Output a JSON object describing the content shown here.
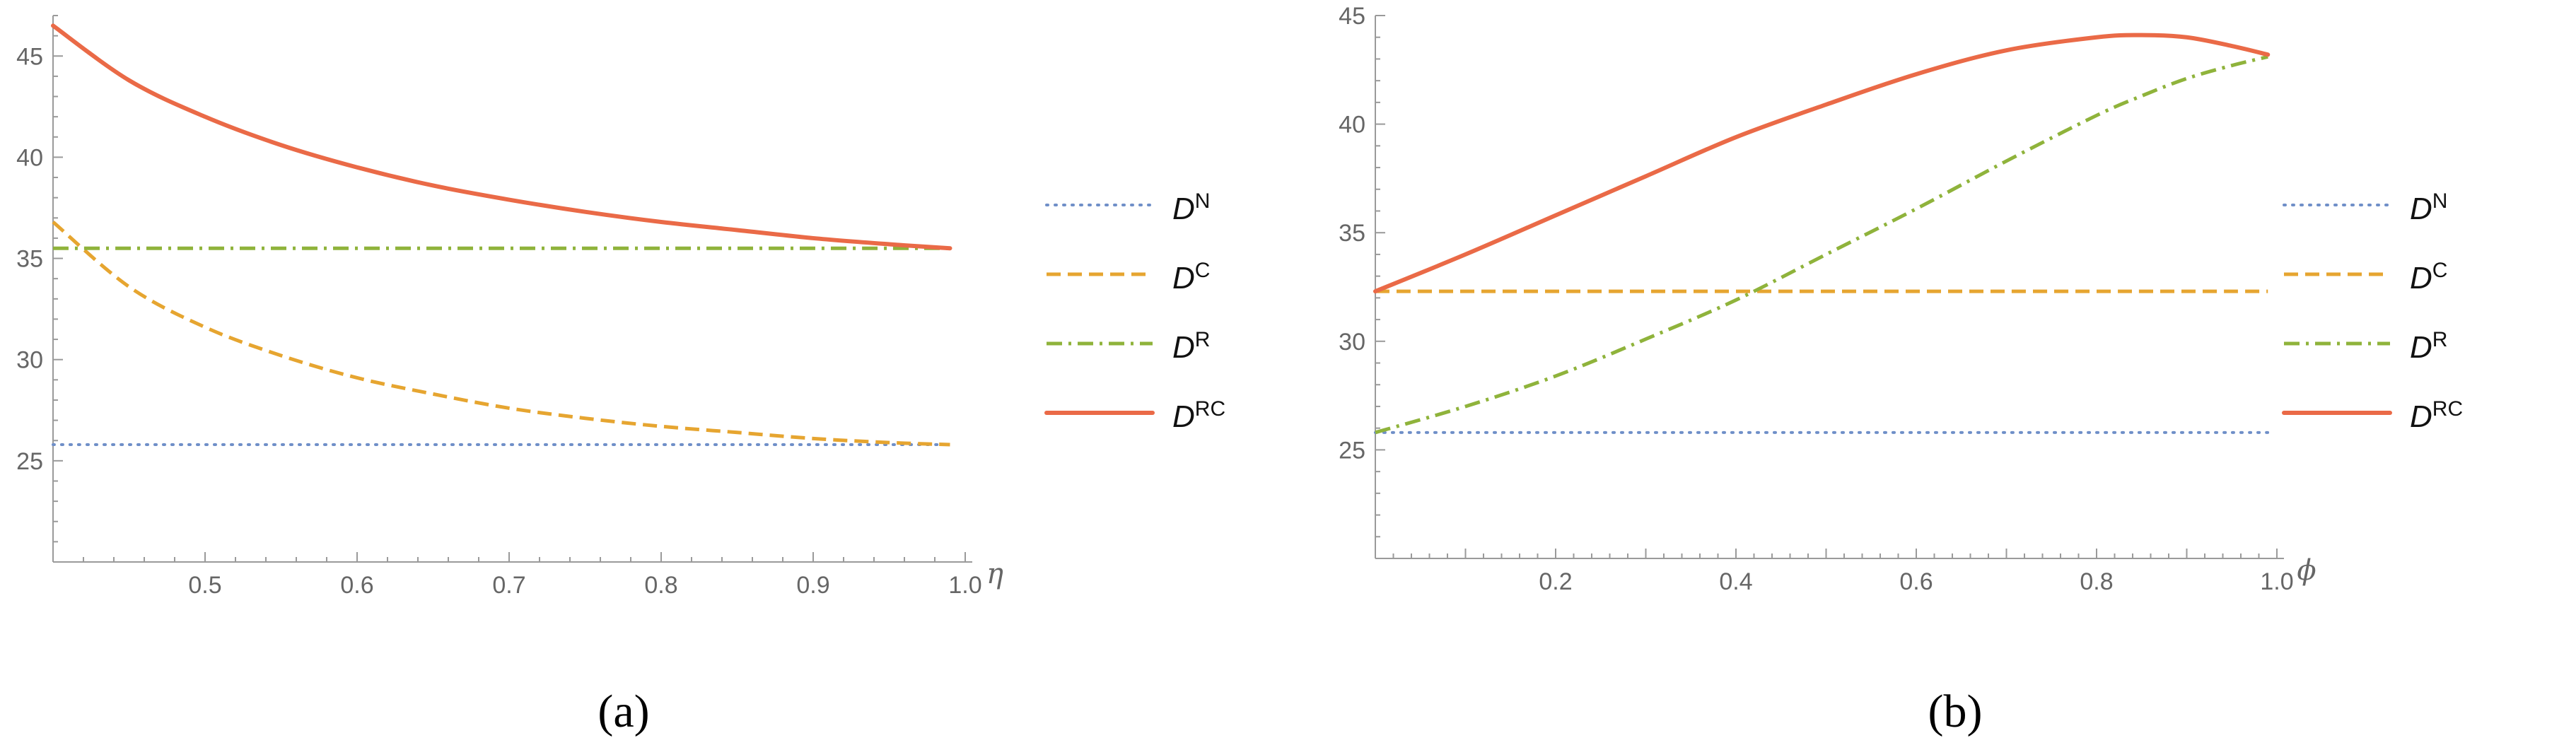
{
  "colors": {
    "DN": "#6f8fc8",
    "DC": "#e6a530",
    "DR": "#8fb33b",
    "DRC": "#ea6a47",
    "axis": "#9a9a9a",
    "text": "#666666"
  },
  "chart_data": [
    {
      "type": "line",
      "caption": "(a)",
      "xlabel": "η",
      "ylabel": "",
      "xlim": [
        0.4,
        1.0
      ],
      "ylim": [
        20,
        47
      ],
      "xticks": [
        0.5,
        0.6,
        0.7,
        0.8,
        0.9,
        1.0
      ],
      "xtick_labels": [
        "0.5",
        "0.6",
        "0.7",
        "0.8",
        "0.9",
        "1.0"
      ],
      "yticks": [
        25,
        30,
        35,
        40,
        45
      ],
      "ytick_labels": [
        "25",
        "30",
        "35",
        "40",
        "45"
      ],
      "grid": false,
      "legend_position": "right",
      "x": [
        0.4,
        0.45,
        0.5,
        0.55,
        0.6,
        0.65,
        0.7,
        0.75,
        0.8,
        0.85,
        0.9,
        0.95,
        0.99
      ],
      "series": [
        {
          "key": "DN",
          "base": "D",
          "sup": "N",
          "style": "dotted",
          "values": [
            25.8,
            25.8,
            25.8,
            25.8,
            25.8,
            25.8,
            25.8,
            25.8,
            25.8,
            25.8,
            25.8,
            25.8,
            25.8
          ]
        },
        {
          "key": "DC",
          "base": "D",
          "sup": "C",
          "style": "dashed",
          "values": [
            36.8,
            33.6,
            31.6,
            30.2,
            29.1,
            28.3,
            27.6,
            27.1,
            26.7,
            26.4,
            26.1,
            25.9,
            25.8
          ]
        },
        {
          "key": "DR",
          "base": "D",
          "sup": "R",
          "style": "dashdot",
          "values": [
            35.5,
            35.5,
            35.5,
            35.5,
            35.5,
            35.5,
            35.5,
            35.5,
            35.5,
            35.5,
            35.5,
            35.5,
            35.5
          ]
        },
        {
          "key": "DRC",
          "base": "D",
          "sup": "RC",
          "style": "solid",
          "values": [
            46.5,
            43.8,
            42.0,
            40.6,
            39.5,
            38.6,
            37.9,
            37.3,
            36.8,
            36.4,
            36.0,
            35.7,
            35.5
          ]
        }
      ]
    },
    {
      "type": "line",
      "caption": "(b)",
      "xlabel": "ϕ",
      "ylabel": "",
      "xlim": [
        0.0,
        1.0
      ],
      "ylim": [
        20,
        45
      ],
      "xticks": [
        0.2,
        0.4,
        0.6,
        0.8,
        1.0
      ],
      "xtick_labels": [
        "0.2",
        "0.4",
        "0.6",
        "0.8",
        "1.0"
      ],
      "yticks": [
        25,
        30,
        35,
        40,
        45
      ],
      "ytick_labels": [
        "25",
        "30",
        "35",
        "40",
        "45"
      ],
      "grid": false,
      "legend_position": "right",
      "x": [
        0.0,
        0.1,
        0.2,
        0.3,
        0.4,
        0.5,
        0.6,
        0.7,
        0.8,
        0.85,
        0.9,
        0.95,
        0.99
      ],
      "series": [
        {
          "key": "DN",
          "base": "D",
          "sup": "N",
          "style": "dotted",
          "values": [
            25.8,
            25.8,
            25.8,
            25.8,
            25.8,
            25.8,
            25.8,
            25.8,
            25.8,
            25.8,
            25.8,
            25.8,
            25.8
          ]
        },
        {
          "key": "DC",
          "base": "D",
          "sup": "C",
          "style": "dashed",
          "values": [
            32.3,
            32.3,
            32.3,
            32.3,
            32.3,
            32.3,
            32.3,
            32.3,
            32.3,
            32.3,
            32.3,
            32.3,
            32.3
          ]
        },
        {
          "key": "DR",
          "base": "D",
          "sup": "R",
          "style": "dashdot",
          "values": [
            25.8,
            27.0,
            28.4,
            30.1,
            31.9,
            34.0,
            36.1,
            38.3,
            40.4,
            41.3,
            42.1,
            42.7,
            43.1
          ]
        },
        {
          "key": "DRC",
          "base": "D",
          "sup": "RC",
          "style": "solid",
          "values": [
            32.3,
            34.0,
            35.8,
            37.6,
            39.4,
            40.9,
            42.3,
            43.4,
            44.0,
            44.1,
            44.0,
            43.6,
            43.2
          ]
        }
      ]
    }
  ]
}
